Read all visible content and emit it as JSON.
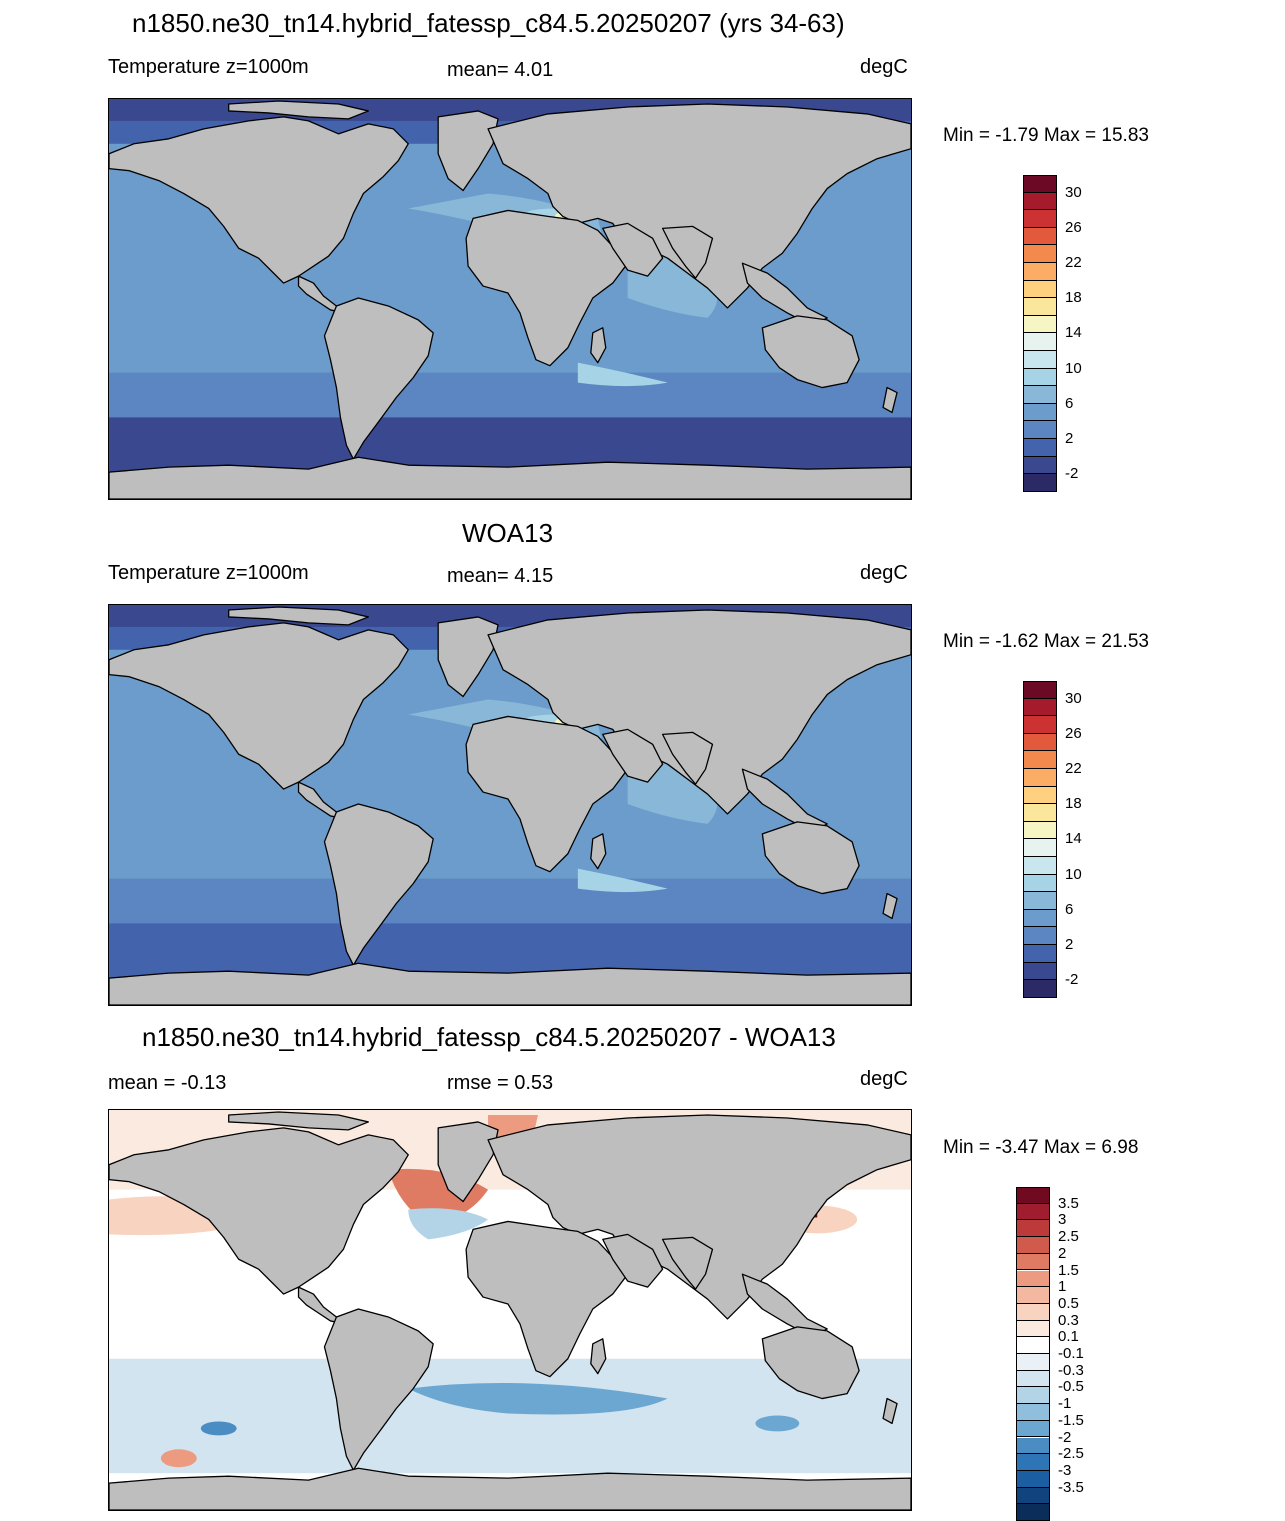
{
  "panels": [
    {
      "title": "n1850.ne30_tn14.hybrid_fatessp_c84.5.20250207 (yrs 34-63)",
      "left_label": "Temperature z=1000m",
      "center_label": "mean=   4.01",
      "units": "degC",
      "minmax": "Min =  -1.79 Max =  15.83",
      "field": "model",
      "colorbar": {
        "colors": [
          "#2c2a66",
          "#3a4890",
          "#4463ad",
          "#5b86c1",
          "#6b9ccb",
          "#88b7d8",
          "#a6d3e5",
          "#c9e6ee",
          "#e6f3ee",
          "#f6f6c4",
          "#fbe79b",
          "#fed080",
          "#fbad66",
          "#f4894d",
          "#e3593b",
          "#cc3231",
          "#a51b2b",
          "#6c0a26"
        ],
        "ticks": [
          "30",
          "26",
          "22",
          "18",
          "14",
          "10",
          "6",
          "2",
          "-2"
        ]
      }
    },
    {
      "title": "WOA13",
      "left_label": "Temperature z=1000m",
      "center_label": "mean=   4.15",
      "units": "degC",
      "minmax": "Min =  -1.62 Max =  21.53",
      "field": "obs",
      "colorbar": {
        "colors": [
          "#2c2a66",
          "#3a4890",
          "#4463ad",
          "#5b86c1",
          "#6b9ccb",
          "#88b7d8",
          "#a6d3e5",
          "#c9e6ee",
          "#e6f3ee",
          "#f6f6c4",
          "#fbe79b",
          "#fed080",
          "#fbad66",
          "#f4894d",
          "#e3593b",
          "#cc3231",
          "#a51b2b",
          "#6c0a26"
        ],
        "ticks": [
          "30",
          "26",
          "22",
          "18",
          "14",
          "10",
          "6",
          "2",
          "-2"
        ]
      }
    },
    {
      "title": "n1850.ne30_tn14.hybrid_fatessp_c84.5.20250207 - WOA13",
      "left_label": "mean =  -0.13",
      "center_label": "rmse =   0.53",
      "units": "degC",
      "minmax": "Min =  -3.47 Max =   6.98",
      "field": "diff",
      "colorbar": {
        "colors": [
          "#0b2d5a",
          "#11437f",
          "#1c5ea2",
          "#2d75b6",
          "#4b8dc3",
          "#6ba7d1",
          "#8fbfdd",
          "#b3d4e7",
          "#d2e4ef",
          "#e9f1f6",
          "#ffffff",
          "#fbeadf",
          "#f8d3c0",
          "#f4b7a0",
          "#ec9a80",
          "#e07b63",
          "#d05a4c",
          "#bd3a3b",
          "#a01d2f",
          "#6f0a21"
        ],
        "ticks": [
          "3.5",
          "3",
          "2.5",
          "2",
          "1.5",
          "1",
          "0.5",
          "0.3",
          "0.1",
          "-0.1",
          "-0.3",
          "-0.5",
          "-1",
          "-1.5",
          "-2",
          "-2.5",
          "-3",
          "-3.5"
        ]
      }
    }
  ],
  "land_color": "#bebebe"
}
